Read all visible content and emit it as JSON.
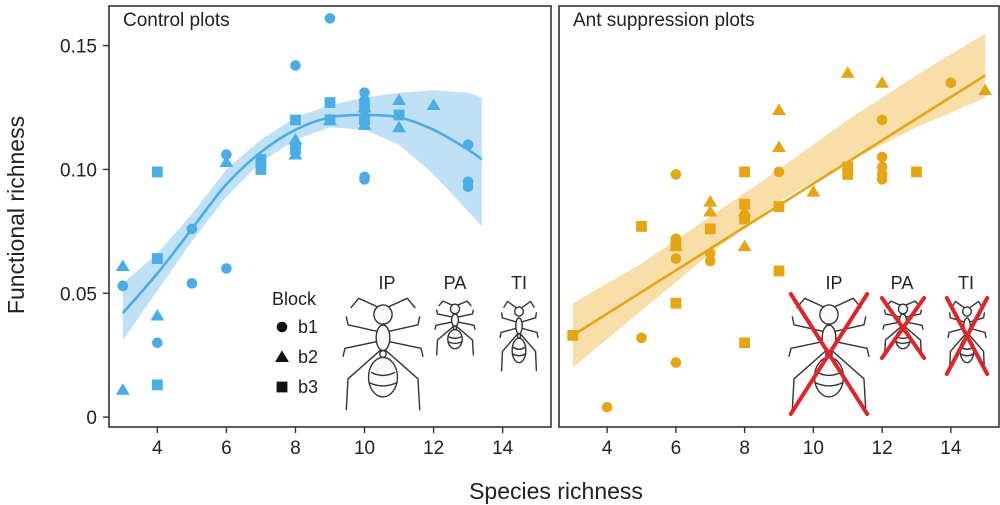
{
  "chart_data": [
    {
      "type": "scatter",
      "title": "Control plots",
      "xlabel": "Species richness",
      "ylabel": "Functional richness",
      "xlim": [
        2.6,
        15.4
      ],
      "ylim": [
        -0.004,
        0.166
      ],
      "xticks": [
        "4",
        "6",
        "8",
        "10",
        "12",
        "14"
      ],
      "yticks": [
        "0",
        "0.05",
        "0.10",
        "0.15"
      ],
      "color": "#4aaee6",
      "band_color": "#a9d6f2",
      "series": [
        {
          "name": "b1",
          "marker": "circle",
          "x": [
            3,
            4,
            5,
            5,
            6,
            6,
            8,
            8,
            9,
            10,
            10,
            10,
            10,
            10,
            13,
            13,
            13
          ],
          "y": [
            0.053,
            0.03,
            0.076,
            0.054,
            0.106,
            0.06,
            0.142,
            0.11,
            0.161,
            0.131,
            0.128,
            0.124,
            0.097,
            0.096,
            0.11,
            0.095,
            0.093
          ]
        },
        {
          "name": "b2",
          "marker": "triangle",
          "x": [
            3,
            3,
            4,
            6,
            8,
            8,
            9,
            10,
            10,
            11,
            11,
            12
          ],
          "y": [
            0.061,
            0.011,
            0.041,
            0.103,
            0.106,
            0.112,
            0.12,
            0.118,
            0.125,
            0.128,
            0.117,
            0.126
          ]
        },
        {
          "name": "b3",
          "marker": "square",
          "x": [
            4,
            4,
            4,
            7,
            7,
            8,
            8,
            9,
            9,
            10,
            10,
            11
          ],
          "y": [
            0.099,
            0.064,
            0.013,
            0.104,
            0.1,
            0.12,
            0.108,
            0.127,
            0.12,
            0.12,
            0.126,
            0.122
          ]
        }
      ],
      "fit": {
        "x": [
          3,
          4,
          5,
          6,
          7,
          8,
          9,
          10,
          11,
          12,
          13,
          13.4
        ],
        "y": [
          0.042,
          0.058,
          0.076,
          0.094,
          0.107,
          0.116,
          0.121,
          0.122,
          0.121,
          0.116,
          0.108,
          0.104
        ]
      },
      "band": {
        "lower": [
          0.031,
          0.051,
          0.071,
          0.089,
          0.103,
          0.112,
          0.117,
          0.116,
          0.11,
          0.098,
          0.083,
          0.077
        ],
        "upper": [
          0.054,
          0.066,
          0.082,
          0.1,
          0.112,
          0.121,
          0.126,
          0.129,
          0.131,
          0.132,
          0.131,
          0.129
        ]
      },
      "ants": [
        {
          "label": "IP",
          "removed": false
        },
        {
          "label": "PA",
          "removed": false
        },
        {
          "label": "TI",
          "removed": false
        }
      ],
      "legend": {
        "title": "Block",
        "entries": [
          "b1",
          "b2",
          "b3"
        ]
      }
    },
    {
      "type": "scatter",
      "title": "Ant suppression plots",
      "xlabel": "Species richness",
      "xlim": [
        2.6,
        15.4
      ],
      "ylim": [
        -0.004,
        0.166
      ],
      "xticks": [
        "4",
        "6",
        "8",
        "10",
        "12",
        "14"
      ],
      "color": "#e6a512",
      "band_color": "#f5d48e",
      "series": [
        {
          "name": "b1",
          "marker": "circle",
          "x": [
            4,
            5,
            6,
            6,
            6,
            6,
            7,
            7,
            9,
            12,
            12,
            12,
            12,
            12,
            14
          ],
          "y": [
            0.004,
            0.032,
            0.098,
            0.072,
            0.064,
            0.022,
            0.066,
            0.063,
            0.099,
            0.12,
            0.105,
            0.101,
            0.098,
            0.096,
            0.135
          ]
        },
        {
          "name": "b2",
          "marker": "triangle",
          "x": [
            6,
            7,
            7,
            8,
            8,
            9,
            9,
            10,
            11,
            12,
            15
          ],
          "y": [
            0.069,
            0.087,
            0.083,
            0.083,
            0.069,
            0.124,
            0.109,
            0.091,
            0.139,
            0.135,
            0.132
          ]
        },
        {
          "name": "b3",
          "marker": "square",
          "x": [
            3,
            5,
            6,
            6,
            7,
            8,
            8,
            8,
            8,
            9,
            9,
            11,
            11,
            13
          ],
          "y": [
            0.033,
            0.077,
            0.07,
            0.046,
            0.076,
            0.099,
            0.086,
            0.08,
            0.03,
            0.085,
            0.059,
            0.101,
            0.098,
            0.099
          ]
        }
      ],
      "fit": {
        "x": [
          3,
          15
        ],
        "y": [
          0.033,
          0.138
        ]
      },
      "band": {
        "x": [
          3,
          5,
          7,
          9,
          11,
          13,
          15
        ],
        "lower": [
          0.02,
          0.043,
          0.066,
          0.087,
          0.103,
          0.117,
          0.129
        ],
        "upper": [
          0.046,
          0.062,
          0.081,
          0.1,
          0.12,
          0.138,
          0.155
        ]
      },
      "ants": [
        {
          "label": "IP",
          "removed": true
        },
        {
          "label": "PA",
          "removed": true
        },
        {
          "label": "TI",
          "removed": true
        }
      ]
    }
  ]
}
